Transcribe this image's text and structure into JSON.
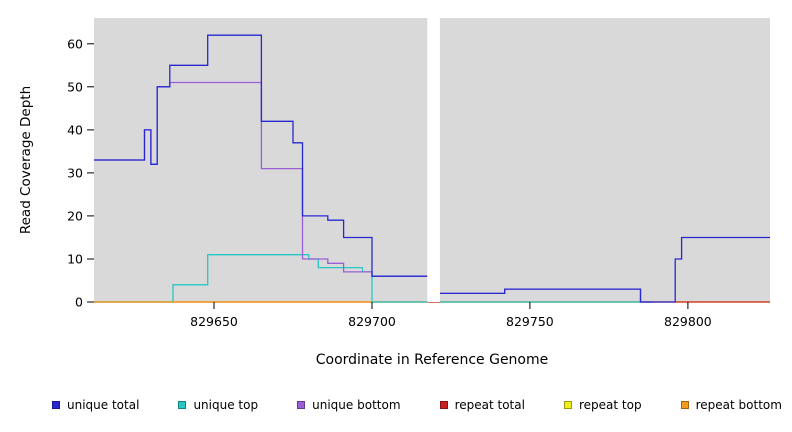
{
  "chart_data": {
    "type": "line",
    "subtype": "step",
    "title": "",
    "xlabel": "Coordinate in Reference Genome",
    "ylabel": "Read Coverage Depth",
    "xlim": [
      829612,
      829826
    ],
    "ylim": [
      0,
      66
    ],
    "xticks": [
      829650,
      829700,
      829750,
      829800
    ],
    "yticks": [
      0,
      10,
      20,
      30,
      40,
      50,
      60
    ],
    "panel_bg": "#d9d9d9",
    "gap_region": [
      829717.5,
      829721.5
    ],
    "series": [
      {
        "name": "repeat top",
        "color": "#f0ee18",
        "segments": [
          [
            [
              829612,
              0
            ],
            [
              829826,
              0
            ]
          ]
        ]
      },
      {
        "name": "repeat total",
        "color": "#cc1f1f",
        "segments": [
          [
            [
              829612,
              0
            ],
            [
              829826,
              0
            ]
          ]
        ]
      },
      {
        "name": "unique top",
        "color": "#25c7c7",
        "segments": [
          [
            [
              829612,
              0
            ],
            [
              829637,
              0
            ],
            [
              829637,
              4
            ],
            [
              829648,
              4
            ],
            [
              829648,
              11
            ],
            [
              829680,
              11
            ],
            [
              829680,
              10
            ],
            [
              829683,
              10
            ],
            [
              829683,
              8
            ],
            [
              829697,
              8
            ],
            [
              829697,
              7
            ],
            [
              829700,
              7
            ],
            [
              829700,
              0
            ],
            [
              829717.5,
              0
            ]
          ],
          [
            [
              829721.5,
              0
            ],
            [
              829789,
              0
            ]
          ]
        ]
      },
      {
        "name": "repeat bottom",
        "color": "#f59b1e",
        "segments": [
          [
            [
              829612,
              0
            ],
            [
              829700,
              0
            ]
          ]
        ]
      },
      {
        "name": "unique bottom",
        "color": "#9a5fd6",
        "segments": [
          [
            [
              829612,
              33
            ],
            [
              829628,
              33
            ],
            [
              829628,
              40
            ],
            [
              829630,
              40
            ],
            [
              829630,
              32
            ],
            [
              829632,
              32
            ],
            [
              829632,
              50
            ],
            [
              829636,
              50
            ],
            [
              829636,
              51
            ],
            [
              829665,
              51
            ],
            [
              829665,
              31
            ],
            [
              829678,
              31
            ],
            [
              829678,
              10
            ],
            [
              829686,
              10
            ],
            [
              829686,
              9
            ],
            [
              829691,
              9
            ],
            [
              829691,
              7
            ],
            [
              829700,
              7
            ],
            [
              829700,
              6
            ],
            [
              829717.5,
              6
            ]
          ],
          [
            [
              829721.5,
              2
            ],
            [
              829742,
              2
            ],
            [
              829742,
              3
            ],
            [
              829785,
              3
            ],
            [
              829785,
              0
            ],
            [
              829789,
              0
            ]
          ]
        ]
      },
      {
        "name": "unique total",
        "color": "#2828d2",
        "segments": [
          [
            [
              829612,
              33
            ],
            [
              829628,
              33
            ],
            [
              829628,
              40
            ],
            [
              829630,
              40
            ],
            [
              829630,
              32
            ],
            [
              829632,
              32
            ],
            [
              829632,
              50
            ],
            [
              829636,
              50
            ],
            [
              829636,
              55
            ],
            [
              829648,
              55
            ],
            [
              829648,
              62
            ],
            [
              829665,
              62
            ],
            [
              829665,
              42
            ],
            [
              829675,
              42
            ],
            [
              829675,
              37
            ],
            [
              829678,
              37
            ],
            [
              829678,
              20
            ],
            [
              829686,
              20
            ],
            [
              829686,
              19
            ],
            [
              829691,
              19
            ],
            [
              829691,
              15
            ],
            [
              829700,
              15
            ],
            [
              829700,
              6
            ],
            [
              829717.5,
              6
            ]
          ],
          [
            [
              829721.5,
              2
            ],
            [
              829742,
              2
            ],
            [
              829742,
              3
            ],
            [
              829785,
              3
            ],
            [
              829785,
              0
            ],
            [
              829796,
              0
            ],
            [
              829796,
              10
            ],
            [
              829798,
              10
            ],
            [
              829798,
              15
            ],
            [
              829826,
              15
            ]
          ]
        ]
      }
    ],
    "legend": {
      "position": "bottom",
      "entries": [
        {
          "name": "unique total",
          "color": "#2828d2"
        },
        {
          "name": "unique top",
          "color": "#25c7c7"
        },
        {
          "name": "unique bottom",
          "color": "#9a5fd6"
        },
        {
          "name": "repeat total",
          "color": "#cc1f1f"
        },
        {
          "name": "repeat top",
          "color": "#f0ee18"
        },
        {
          "name": "repeat bottom",
          "color": "#f59b1e"
        }
      ]
    }
  }
}
